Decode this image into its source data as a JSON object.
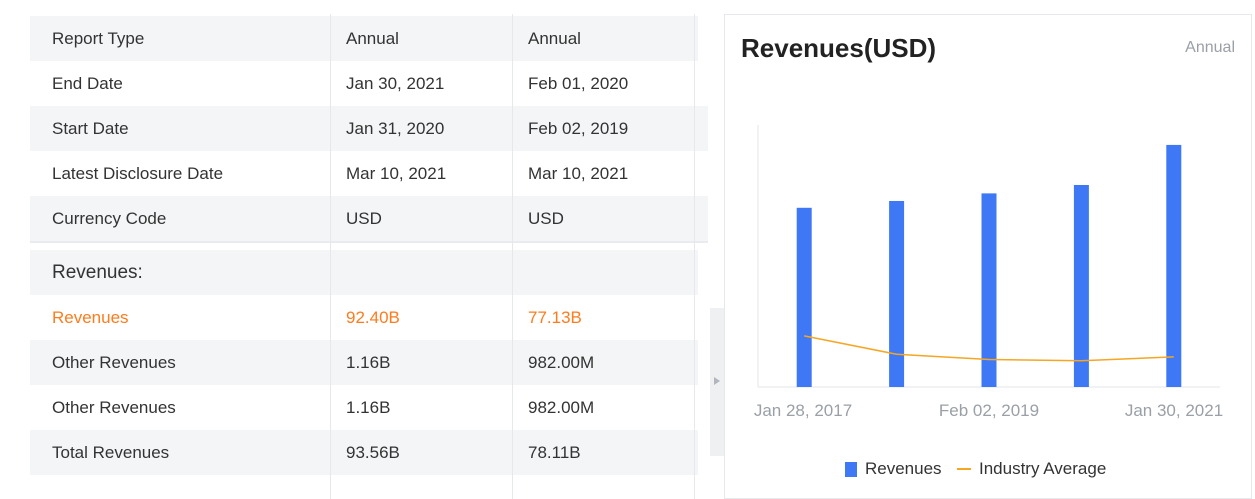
{
  "table": {
    "header": [
      "Report Type",
      "Annual",
      "Annual"
    ],
    "rows": [
      {
        "label": "End Date",
        "v1": "Jan 30, 2021",
        "v2": "Feb 01, 2020"
      },
      {
        "label": "Start Date",
        "v1": "Jan 31, 2020",
        "v2": "Feb 02, 2019"
      },
      {
        "label": "Latest Disclosure Date",
        "v1": "Mar 10, 2021",
        "v2": "Mar 10, 2021"
      },
      {
        "label": "Currency Code",
        "v1": "USD",
        "v2": "USD"
      }
    ],
    "section_title": "Revenues:",
    "revenue_rows": [
      {
        "label": "Revenues",
        "v1": "92.40B",
        "v2": "77.13B"
      },
      {
        "label": "Other Revenues",
        "v1": "1.16B",
        "v2": "982.00M"
      },
      {
        "label": "Other Revenues",
        "v1": "1.16B",
        "v2": "982.00M"
      },
      {
        "label": "Total Revenues",
        "v1": "93.56B",
        "v2": "78.11B"
      }
    ]
  },
  "chart": {
    "title": "Revenues(USD)",
    "period": "Annual",
    "legend": {
      "bars": "Revenues",
      "line": "Industry Average"
    }
  },
  "colors": {
    "accent": "#ff7b1c",
    "bar": "#3f78f4",
    "line": "#f5a623"
  },
  "chart_data": {
    "type": "bar",
    "title": "Revenues(USD)",
    "xlabel": "",
    "ylabel": "",
    "x_tick_labels": [
      "Jan 28, 2017",
      "Feb 02, 2019",
      "Jan 30, 2021"
    ],
    "categories": [
      "",
      "",
      "",
      "",
      ""
    ],
    "series": [
      {
        "name": "Revenues",
        "type": "bar",
        "values": [
          68.4,
          71.0,
          73.9,
          77.1,
          92.4
        ]
      },
      {
        "name": "Industry Average",
        "type": "line",
        "values": [
          19.5,
          12.5,
          10.5,
          10.0,
          11.5
        ]
      }
    ],
    "ylim": [
      0,
      100
    ],
    "grid": false,
    "legend_position": "bottom"
  }
}
